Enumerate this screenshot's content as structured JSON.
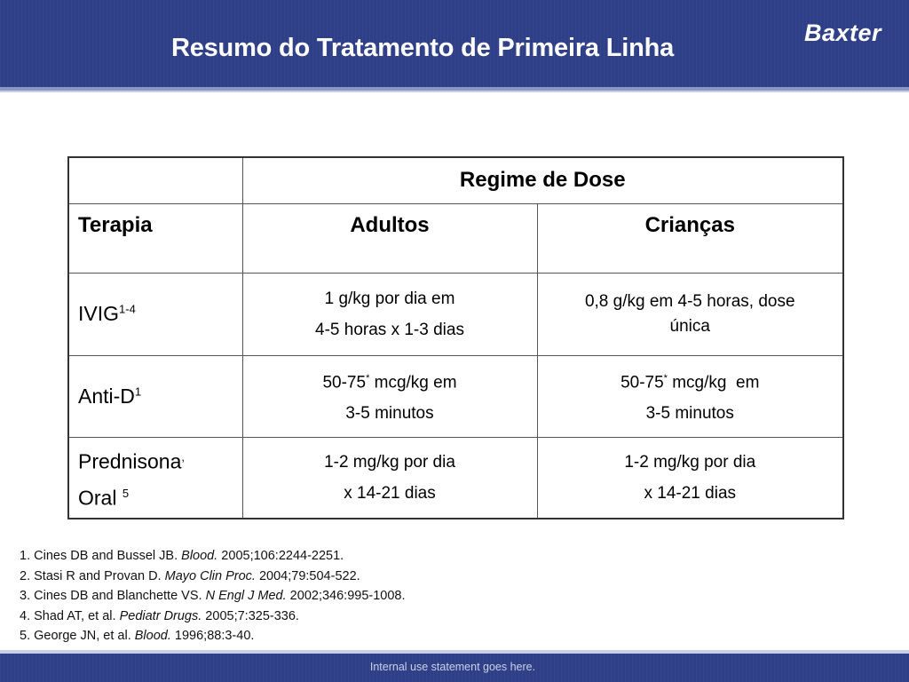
{
  "header": {
    "title": "Resumo do Tratamento de Primeira Linha",
    "logo_text": "Baxter"
  },
  "table": {
    "group_header": "Regime de Dose",
    "columns": {
      "therapy": "Terapia",
      "adults": "Adultos",
      "children": "Crianças"
    },
    "rows": [
      {
        "therapy": "IVIG",
        "therapy_sup": "1-4",
        "adults_line1": "1 g/kg por dia em",
        "adults_line2": "4-5 horas x 1-3 dias",
        "children_line1": "0,8 g/kg em 4-5 horas, dose",
        "children_line2": "única"
      },
      {
        "therapy": "Anti-D",
        "therapy_sup": "1",
        "adults_line1_pre": "50-75",
        "adults_line1_sup": "*",
        "adults_line1_post": " mcg/kg em",
        "adults_line2": "3-5 minutos",
        "children_line1_pre": "50-75",
        "children_line1_sup": "*",
        "children_line1_post": " mcg/kg  em",
        "children_line2": "3-5 minutos"
      },
      {
        "therapy_line1": "Prednisona",
        "therapy_line1_sup": ",",
        "therapy_line2": "Oral ",
        "therapy_line2_sup": "5",
        "adults_line1": "1-2 mg/kg por dia",
        "adults_line2": "x 14-21 dias",
        "children_line1": "1-2 mg/kg por dia",
        "children_line2": "x 14-21 dias"
      }
    ]
  },
  "references": [
    {
      "pre": "1. Cines DB and Bussel JB. ",
      "journal": "Blood.",
      "post": " 2005;106:2244-2251."
    },
    {
      "pre": "2. Stasi R and Provan D. ",
      "journal": "Mayo Clin Proc.",
      "post": " 2004;79:504-522."
    },
    {
      "pre": "3. Cines DB and Blanchette VS. ",
      "journal": "N Engl J Med.",
      "post": " 2002;346:995-1008."
    },
    {
      "pre": "4. Shad AT, et al. ",
      "journal": "Pediatr Drugs.",
      "post": " 2005;7:325-336."
    },
    {
      "pre": "5. George JN, et al. ",
      "journal": "Blood.",
      "post": " 1996;88:3-40."
    }
  ],
  "footer": {
    "text": "Internal use statement goes here."
  },
  "colors": {
    "header_bg": "#2f3f87",
    "header_stripe": "#8d97c5",
    "text": "#000000"
  }
}
